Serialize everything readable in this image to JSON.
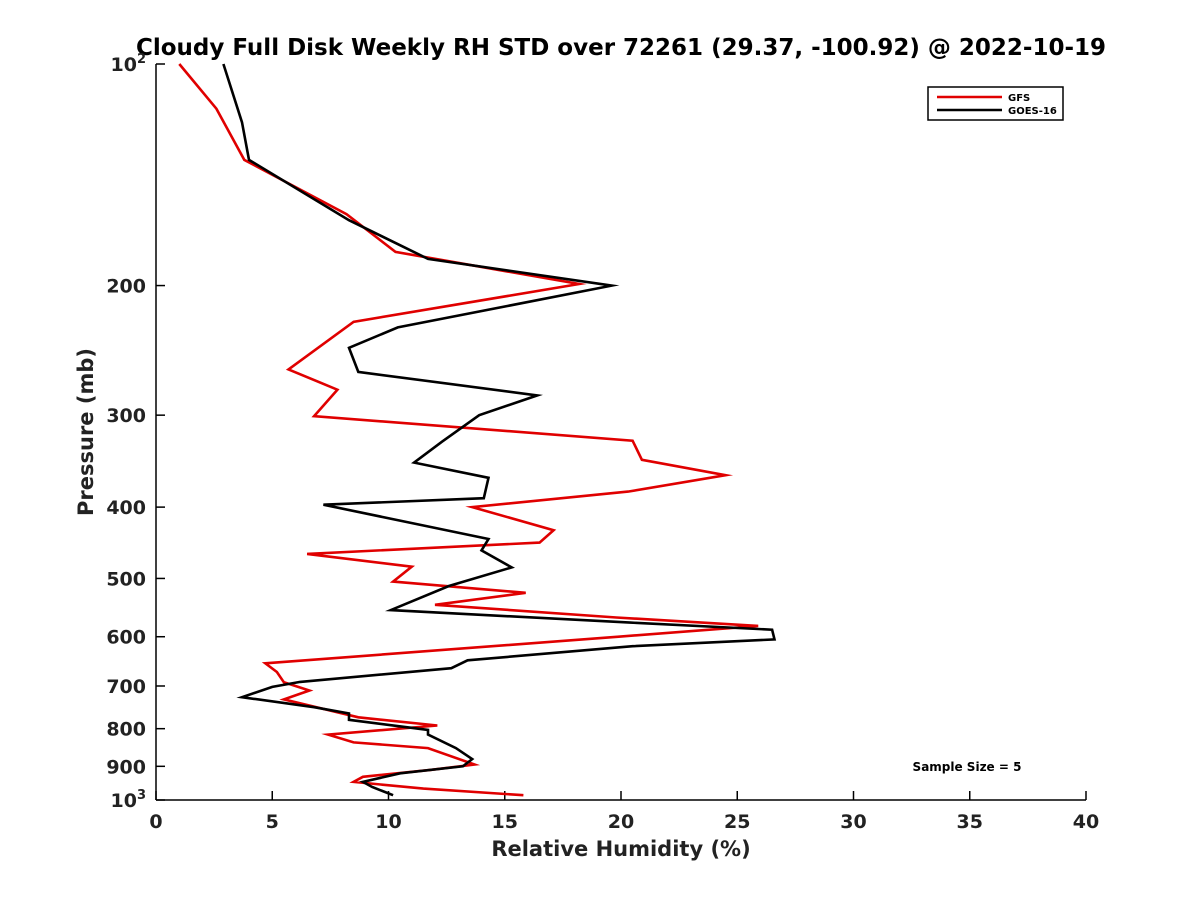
{
  "chart_data": {
    "type": "line",
    "title": "Cloudy Full Disk Weekly RH STD over 72261 (29.37, -100.92) @ 2022-10-19",
    "xlabel": "Relative Humidity (%)",
    "ylabel": "Pressure (mb)",
    "xlim": [
      0,
      40
    ],
    "ylim": [
      100,
      1000
    ],
    "yscale": "log",
    "y_reversed": true,
    "grid": false,
    "legend_position": "top-right",
    "xticks": [
      {
        "value": 0,
        "label": "0"
      },
      {
        "value": 5,
        "label": "5"
      },
      {
        "value": 10,
        "label": "10"
      },
      {
        "value": 15,
        "label": "15"
      },
      {
        "value": 20,
        "label": "20"
      },
      {
        "value": 25,
        "label": "25"
      },
      {
        "value": 30,
        "label": "30"
      },
      {
        "value": 35,
        "label": "35"
      },
      {
        "value": 40,
        "label": "40"
      }
    ],
    "yticks": [
      {
        "value": 100,
        "label": "10",
        "sup": "2"
      },
      {
        "value": 200,
        "label": "200"
      },
      {
        "value": 300,
        "label": "300"
      },
      {
        "value": 400,
        "label": "400"
      },
      {
        "value": 500,
        "label": "500"
      },
      {
        "value": 600,
        "label": "600"
      },
      {
        "value": 700,
        "label": "700"
      },
      {
        "value": 800,
        "label": "800"
      },
      {
        "value": 900,
        "label": "900"
      },
      {
        "value": 1000,
        "label": "10",
        "sup": "3"
      }
    ],
    "series": [
      {
        "name": "GFS",
        "color": "#e00000",
        "points": [
          [
            1.0,
            100
          ],
          [
            2.6,
            115
          ],
          [
            3.8,
            135
          ],
          [
            8.2,
            160
          ],
          [
            10.3,
            180
          ],
          [
            18.2,
            199
          ],
          [
            8.5,
            224
          ],
          [
            5.7,
            260
          ],
          [
            7.8,
            277
          ],
          [
            6.8,
            301
          ],
          [
            20.5,
            325
          ],
          [
            20.9,
            345
          ],
          [
            24.5,
            362
          ],
          [
            20.3,
            381
          ],
          [
            13.6,
            400
          ],
          [
            17.1,
            430
          ],
          [
            16.5,
            447
          ],
          [
            6.5,
            463
          ],
          [
            11.0,
            482
          ],
          [
            10.2,
            505
          ],
          [
            15.9,
            523
          ],
          [
            12.0,
            543
          ],
          [
            19.8,
            565
          ],
          [
            25.9,
            580
          ],
          [
            19.9,
            600
          ],
          [
            4.7,
            652
          ],
          [
            5.2,
            670
          ],
          [
            5.5,
            692
          ],
          [
            6.6,
            710
          ],
          [
            5.5,
            730
          ],
          [
            8.7,
            772
          ],
          [
            12.1,
            792
          ],
          [
            7.4,
            815
          ],
          [
            8.5,
            835
          ],
          [
            11.7,
            850
          ],
          [
            13.7,
            895
          ],
          [
            11.8,
            910
          ],
          [
            8.9,
            930
          ],
          [
            8.5,
            945
          ],
          [
            11.5,
            965
          ],
          [
            15.8,
            985
          ]
        ]
      },
      {
        "name": "GOES-16",
        "color": "#000000",
        "points": [
          [
            2.9,
            100
          ],
          [
            3.7,
            120
          ],
          [
            4.0,
            135
          ],
          [
            8.3,
            163
          ],
          [
            11.7,
            184
          ],
          [
            19.6,
            200
          ],
          [
            10.4,
            228
          ],
          [
            8.3,
            243
          ],
          [
            8.7,
            262
          ],
          [
            16.4,
            282
          ],
          [
            13.9,
            300
          ],
          [
            12.3,
            326
          ],
          [
            11.1,
            348
          ],
          [
            14.3,
            365
          ],
          [
            14.1,
            389
          ],
          [
            7.2,
            397
          ],
          [
            11.4,
            423
          ],
          [
            14.3,
            442
          ],
          [
            14.0,
            458
          ],
          [
            15.3,
            483
          ],
          [
            12.6,
            512
          ],
          [
            10.1,
            552
          ],
          [
            20.4,
            574
          ],
          [
            26.5,
            587
          ],
          [
            26.6,
            605
          ],
          [
            20.5,
            618
          ],
          [
            13.4,
            646
          ],
          [
            12.7,
            662
          ],
          [
            6.2,
            691
          ],
          [
            5.0,
            702
          ],
          [
            3.7,
            725
          ],
          [
            6.8,
            748
          ],
          [
            8.3,
            763
          ],
          [
            8.3,
            778
          ],
          [
            11.7,
            803
          ],
          [
            11.7,
            815
          ],
          [
            12.9,
            850
          ],
          [
            13.6,
            880
          ],
          [
            13.2,
            900
          ],
          [
            10.5,
            920
          ],
          [
            8.9,
            945
          ],
          [
            9.3,
            960
          ],
          [
            10.2,
            985
          ]
        ]
      }
    ],
    "annotations": [
      {
        "text": "Sample Size = 5"
      }
    ]
  }
}
